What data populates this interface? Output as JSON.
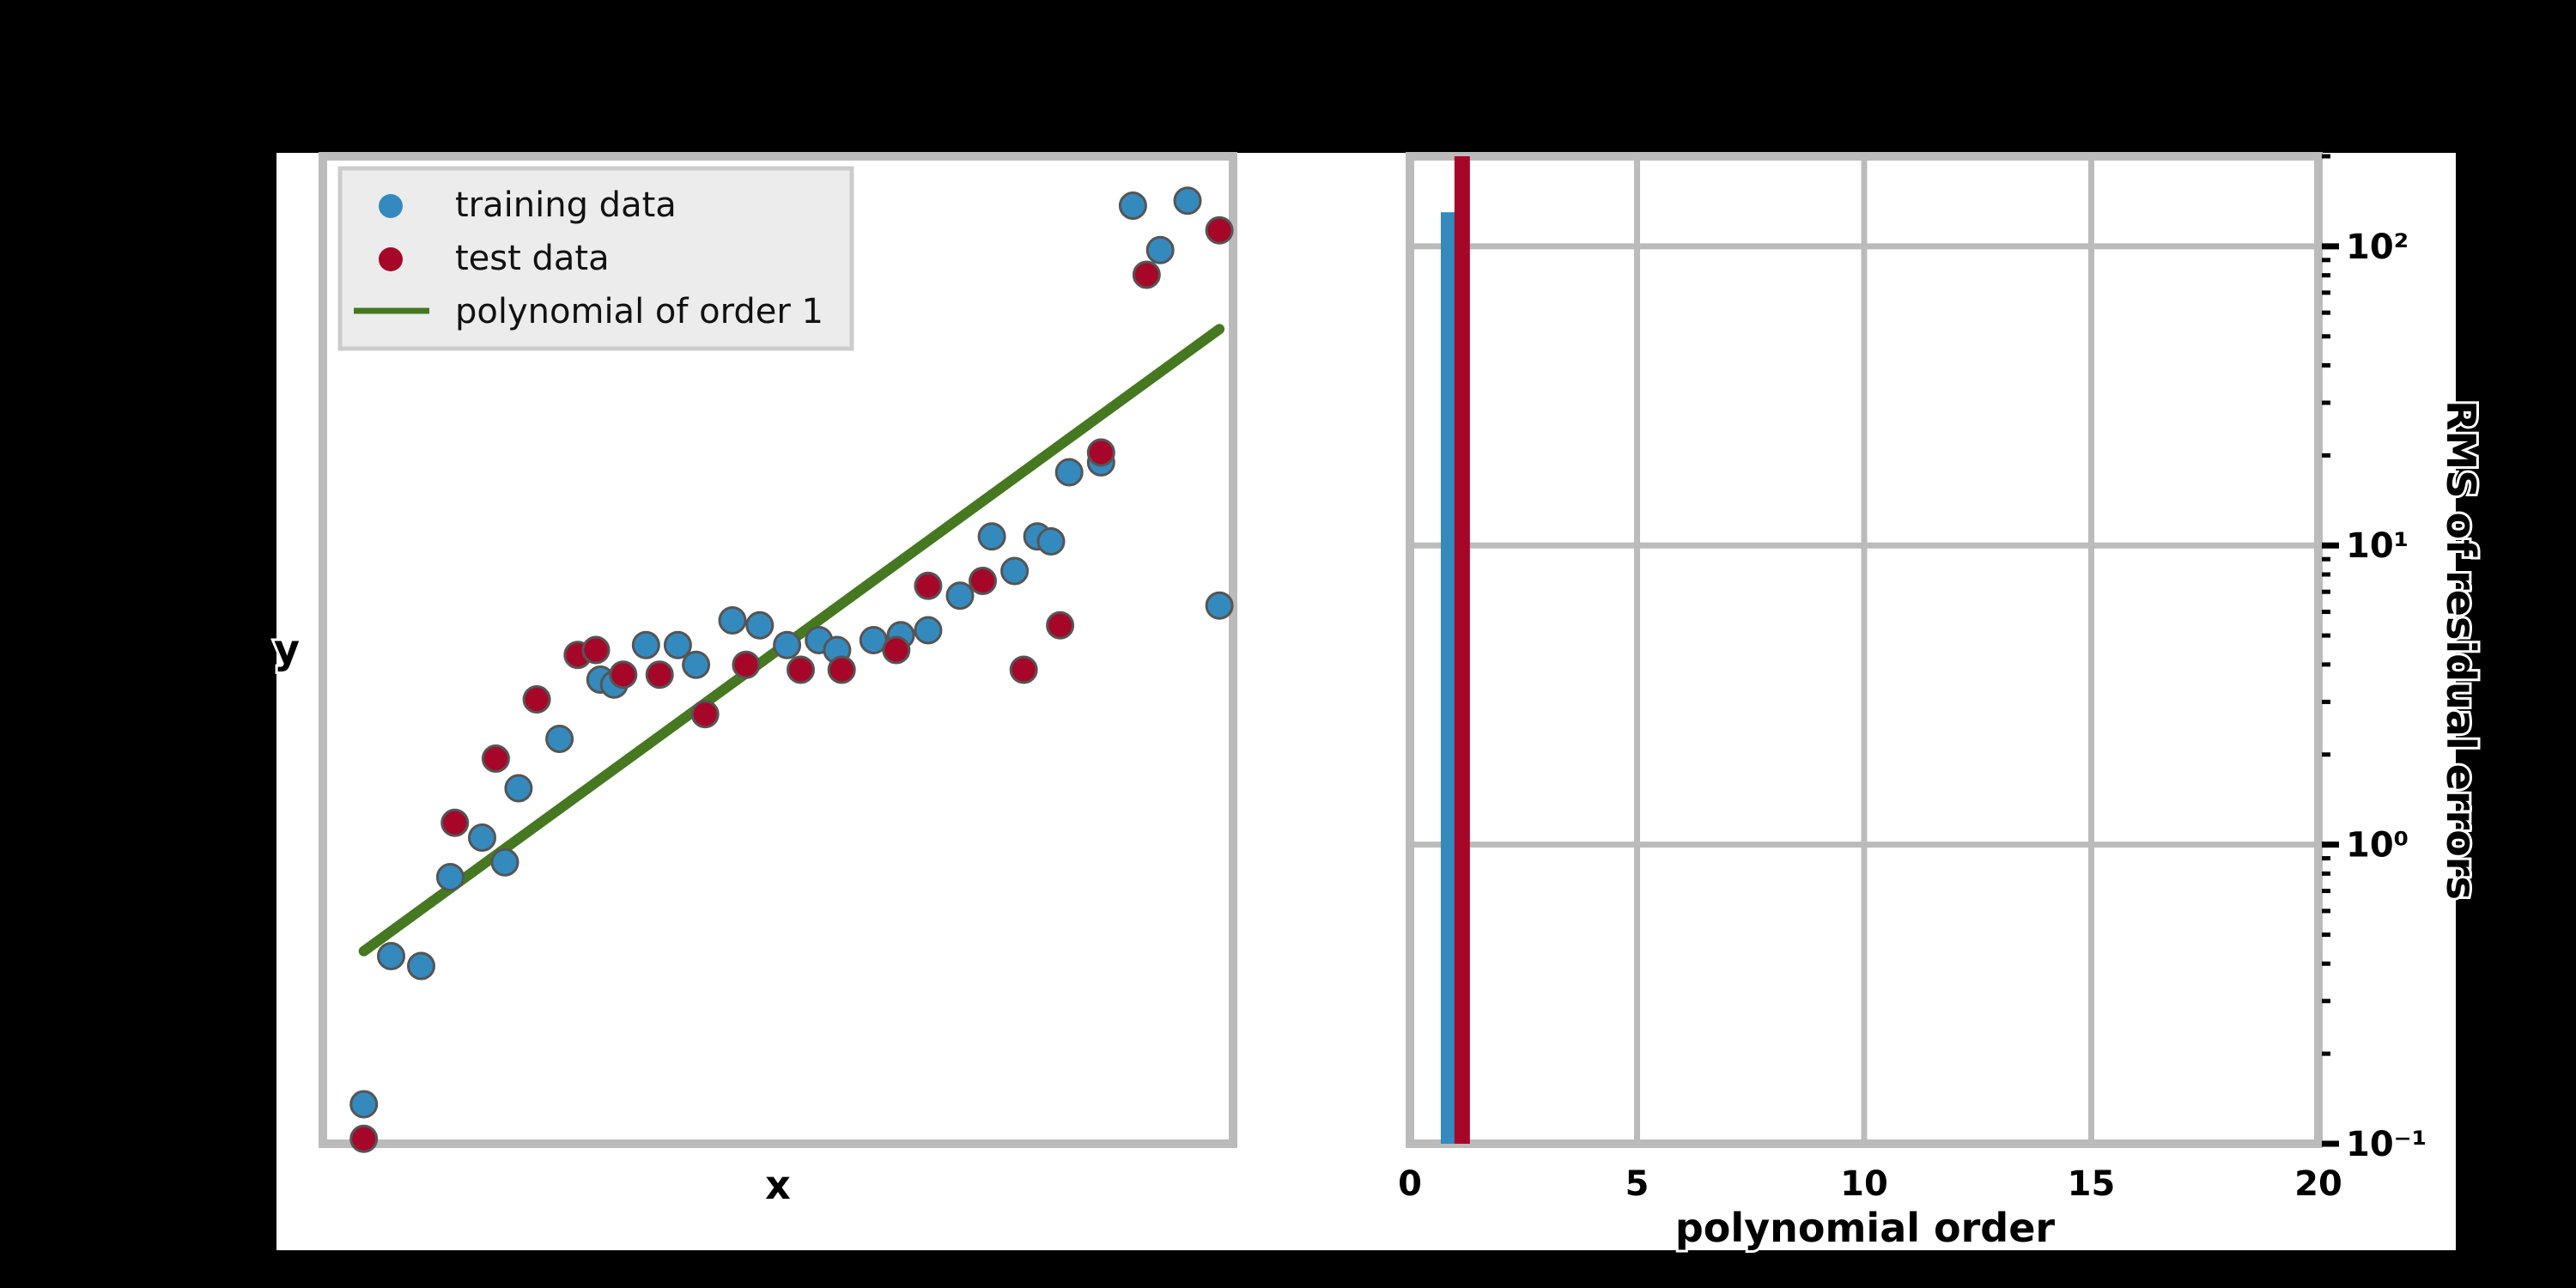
{
  "chart_data": [
    {
      "type": "scatter",
      "title": "",
      "xlabel": "x",
      "ylabel": "y",
      "grid": false,
      "legend_placement": "top-left",
      "xlim": [
        0,
        1
      ],
      "ylim": [
        0,
        1
      ],
      "series": [
        {
          "name": "training data",
          "kind": "scatter",
          "color": "#348ABD",
          "x": [
            0.045,
            0.075,
            0.108,
            0.14,
            0.175,
            0.2,
            0.215,
            0.26,
            0.305,
            0.32,
            0.355,
            0.39,
            0.41,
            0.45,
            0.48,
            0.51,
            0.545,
            0.565,
            0.605,
            0.635,
            0.665,
            0.7,
            0.735,
            0.76,
            0.785,
            0.8,
            0.82,
            0.855,
            0.89,
            0.92,
            0.95,
            0.985
          ],
          "y": [
            0.04,
            0.19,
            0.18,
            0.27,
            0.31,
            0.285,
            0.36,
            0.41,
            0.47,
            0.465,
            0.505,
            0.505,
            0.485,
            0.53,
            0.525,
            0.505,
            0.51,
            0.5,
            0.51,
            0.515,
            0.52,
            0.555,
            0.615,
            0.58,
            0.615,
            0.61,
            0.68,
            0.69,
            0.95,
            0.905,
            0.955,
            0.545
          ]
        },
        {
          "name": "test data",
          "kind": "scatter",
          "color": "#A60628",
          "x": [
            0.045,
            0.145,
            0.19,
            0.235,
            0.28,
            0.3,
            0.33,
            0.37,
            0.42,
            0.465,
            0.525,
            0.57,
            0.63,
            0.665,
            0.725,
            0.77,
            0.81,
            0.855,
            0.905,
            0.985
          ],
          "y": [
            0.005,
            0.325,
            0.39,
            0.45,
            0.495,
            0.5,
            0.475,
            0.475,
            0.435,
            0.485,
            0.48,
            0.48,
            0.5,
            0.565,
            0.57,
            0.48,
            0.525,
            0.7,
            0.88,
            0.925
          ]
        },
        {
          "name": "polynomial of order 1",
          "kind": "line",
          "color": "#467821",
          "x": [
            0.045,
            0.985
          ],
          "y": [
            0.195,
            0.825
          ]
        }
      ]
    },
    {
      "type": "bar",
      "title": "",
      "xlabel": "polynomial order",
      "ylabel": "RMS of residual errors",
      "y_scale": "log",
      "y_axis_side": "right",
      "grid": true,
      "xlim": [
        0,
        20
      ],
      "ylim": [
        0.1,
        200
      ],
      "x_ticks": [
        0,
        5,
        10,
        15,
        20
      ],
      "x_tick_labels": [
        "0",
        "5",
        "10",
        "15",
        "20"
      ],
      "y_ticks": [
        0.1,
        1,
        10,
        100
      ],
      "y_tick_labels": [
        "10⁻¹",
        "10⁰",
        "10¹",
        "10²"
      ],
      "series": [
        {
          "name": "training",
          "color": "#348ABD",
          "x": [
            0.85
          ],
          "values": [
            130
          ]
        },
        {
          "name": "test",
          "color": "#A60628",
          "x": [
            1.15
          ],
          "values": [
            200
          ]
        }
      ]
    }
  ]
}
